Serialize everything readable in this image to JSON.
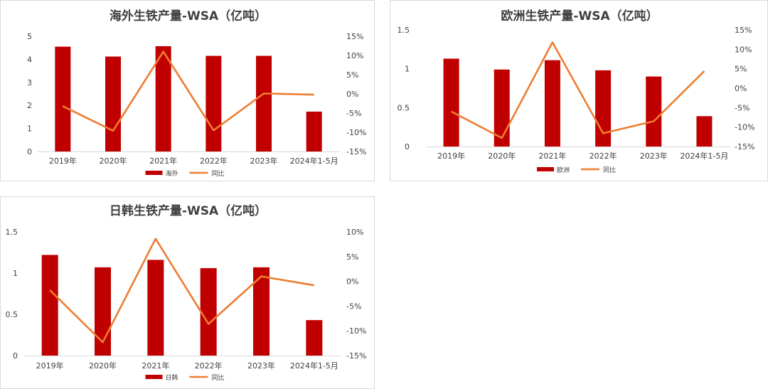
{
  "colors": {
    "bar": "#c00000",
    "line": "#ed7d31",
    "axis": "#d9d9d9",
    "text": "#404040"
  },
  "chart_data": [
    {
      "type": "bar",
      "title": "海外生铁产量-WSA（亿吨）",
      "categories": [
        "2019年",
        "2020年",
        "2021年",
        "2022年",
        "2023年",
        "2024年1-5月"
      ],
      "series": [
        {
          "name": "海外",
          "type": "bar",
          "axis": "left",
          "values": [
            4.55,
            4.12,
            4.57,
            4.15,
            4.15,
            1.73
          ]
        },
        {
          "name": "同比",
          "type": "line",
          "axis": "right",
          "values": [
            -3.2,
            -9.6,
            11.0,
            -9.5,
            0.1,
            -0.2
          ]
        }
      ],
      "left_axis": {
        "ylim": [
          0,
          5
        ],
        "ticks": [
          "0",
          "1",
          "2",
          "3",
          "4",
          "5"
        ]
      },
      "right_axis": {
        "ylim": [
          -15,
          15
        ],
        "ticks": [
          "-15%",
          "-10%",
          "-5%",
          "0%",
          "5%",
          "10%",
          "15%"
        ]
      },
      "legend": {
        "position": "bottom",
        "labels": [
          "海外",
          "同比"
        ]
      }
    },
    {
      "type": "bar",
      "title": "欧洲生铁产量-WSA（亿吨）",
      "categories": [
        "2019年",
        "2020年",
        "2021年",
        "2022年",
        "2023年",
        "2024年1-5月"
      ],
      "series": [
        {
          "name": "欧洲",
          "type": "bar",
          "axis": "left",
          "values": [
            1.13,
            0.99,
            1.11,
            0.98,
            0.9,
            0.39
          ]
        },
        {
          "name": "同比",
          "type": "line",
          "axis": "right",
          "values": [
            -6.0,
            -12.8,
            11.8,
            -11.6,
            -8.5,
            4.4
          ]
        }
      ],
      "left_axis": {
        "ylim": [
          0,
          1.5
        ],
        "ticks": [
          "0",
          "0.5",
          "1",
          "1.5"
        ]
      },
      "right_axis": {
        "ylim": [
          -15,
          15
        ],
        "ticks": [
          "-15%",
          "-10%",
          "-5%",
          "0%",
          "5%",
          "10%",
          "15%"
        ]
      },
      "legend": {
        "position": "bottom",
        "labels": [
          "欧洲",
          "同比"
        ]
      }
    },
    {
      "type": "bar",
      "title": "日韩生铁产量-WSA（亿吨）",
      "categories": [
        "2019年",
        "2020年",
        "2021年",
        "2022年",
        "2023年",
        "2024年1-5月"
      ],
      "series": [
        {
          "name": "日韩",
          "type": "bar",
          "axis": "left",
          "values": [
            1.22,
            1.07,
            1.16,
            1.06,
            1.07,
            0.43
          ]
        },
        {
          "name": "同比",
          "type": "line",
          "axis": "right",
          "values": [
            -1.8,
            -12.3,
            8.6,
            -8.6,
            1.0,
            -0.8
          ]
        }
      ],
      "left_axis": {
        "ylim": [
          0,
          1.5
        ],
        "ticks": [
          "0",
          "0.5",
          "1",
          "1.5"
        ]
      },
      "right_axis": {
        "ylim": [
          -15,
          10
        ],
        "ticks": [
          "-15%",
          "-10%",
          "-5%",
          "0%",
          "5%",
          "10%"
        ]
      },
      "legend": {
        "position": "bottom",
        "labels": [
          "日韩",
          "同比"
        ]
      }
    }
  ]
}
